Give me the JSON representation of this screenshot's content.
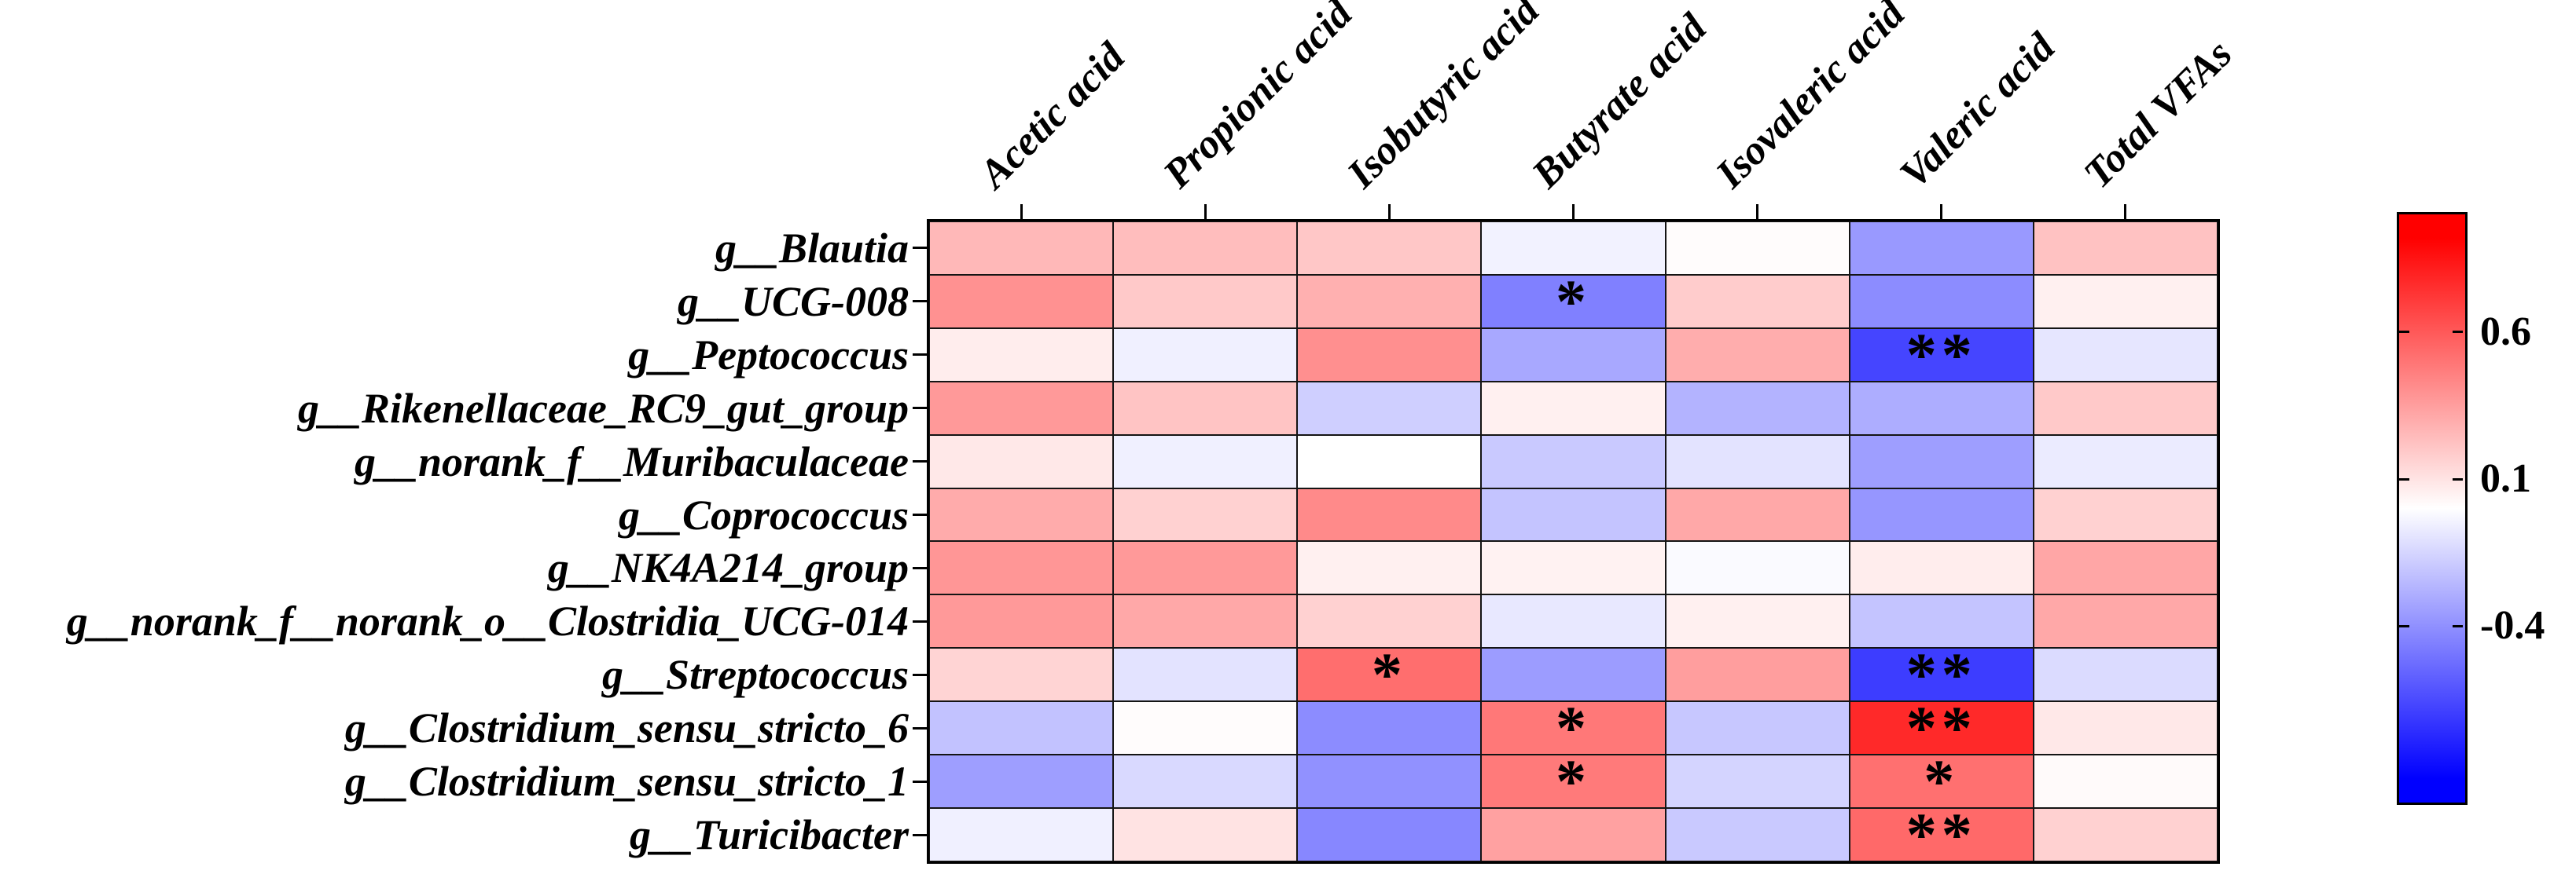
{
  "figure": {
    "background": "#ffffff",
    "grid_line_color": "#141414",
    "border_color": "#000000"
  },
  "chart_data": {
    "type": "heatmap",
    "title": "",
    "xlabel": "",
    "ylabel": "",
    "columns": [
      "Acetic acid",
      "Propionic acid",
      "Isobutyric acid",
      "Butyrate acid",
      "Isovaleric acid",
      "Valeric acid",
      "Total VFAs"
    ],
    "rows": [
      "g__Blautia",
      "g__UCG-008",
      "g__Peptococcus",
      "g__Rikenellaceae_RC9_gut_group",
      "g__norank_f__Muribaculaceae",
      "g__Coprococcus",
      "g__NK4A214_group",
      "g__norank_f__norank_o__Clostridia_UCG-014",
      "g__Streptococcus",
      "g__Clostridium_sensu_stricto_6",
      "g__Clostridium_sensu_stricto_1",
      "g__Turicibacter"
    ],
    "values": [
      [
        0.28,
        0.26,
        0.22,
        -0.05,
        0.01,
        -0.4,
        0.24
      ],
      [
        0.43,
        0.21,
        0.31,
        -0.5,
        0.2,
        -0.45,
        0.06
      ],
      [
        0.07,
        -0.06,
        0.44,
        -0.34,
        0.32,
        -0.73,
        -0.1
      ],
      [
        0.4,
        0.23,
        -0.19,
        0.06,
        -0.3,
        -0.32,
        0.21
      ],
      [
        0.09,
        -0.06,
        0.0,
        -0.21,
        -0.11,
        -0.38,
        -0.08
      ],
      [
        0.33,
        0.18,
        0.46,
        -0.23,
        0.34,
        -0.41,
        0.18
      ],
      [
        0.41,
        0.4,
        0.06,
        0.05,
        -0.02,
        0.07,
        0.35
      ],
      [
        0.4,
        0.34,
        0.18,
        -0.09,
        0.06,
        -0.23,
        0.34
      ],
      [
        0.17,
        -0.11,
        0.57,
        -0.39,
        0.38,
        -0.76,
        -0.14
      ],
      [
        -0.24,
        0.01,
        -0.45,
        0.53,
        -0.22,
        0.84,
        0.09
      ],
      [
        -0.38,
        -0.15,
        -0.43,
        0.52,
        -0.17,
        0.56,
        0.02
      ],
      [
        -0.06,
        0.11,
        -0.47,
        0.37,
        -0.21,
        0.59,
        0.18
      ]
    ],
    "significance": [
      [
        "",
        "",
        "",
        "",
        "",
        "",
        ""
      ],
      [
        "",
        "",
        "",
        "*",
        "",
        "",
        ""
      ],
      [
        "",
        "",
        "",
        "",
        "",
        "**",
        ""
      ],
      [
        "",
        "",
        "",
        "",
        "",
        "",
        ""
      ],
      [
        "",
        "",
        "",
        "",
        "",
        "",
        ""
      ],
      [
        "",
        "",
        "",
        "",
        "",
        "",
        ""
      ],
      [
        "",
        "",
        "",
        "",
        "",
        "",
        ""
      ],
      [
        "",
        "",
        "",
        "",
        "",
        "",
        ""
      ],
      [
        "",
        "",
        "*",
        "",
        "",
        "**",
        ""
      ],
      [
        "",
        "",
        "",
        "*",
        "",
        "**",
        ""
      ],
      [
        "",
        "",
        "",
        "*",
        "",
        "*",
        ""
      ],
      [
        "",
        "",
        "",
        "",
        "",
        "**",
        ""
      ]
    ],
    "colormap": {
      "negative_color": "#0000ff",
      "zero_color": "#ffffff",
      "positive_color": "#ff0000",
      "vmin": -1.0,
      "vmax": 1.0
    },
    "colorbar": {
      "tick_labels": [
        "0.6",
        "0.1",
        "-0.4"
      ],
      "tick_values": [
        0.6,
        0.1,
        -0.4
      ],
      "position": "right",
      "grid": false,
      "legend_position": "right"
    }
  }
}
